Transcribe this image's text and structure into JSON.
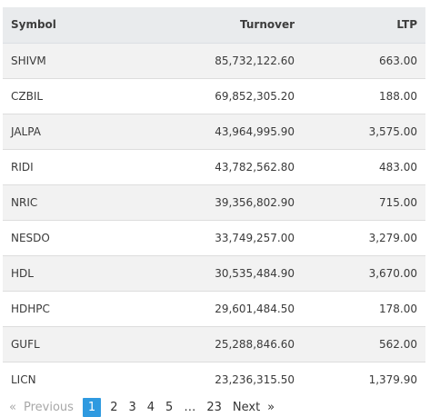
{
  "table": {
    "headers": {
      "symbol": "Symbol",
      "turnover": "Turnover",
      "ltp": "LTP"
    },
    "rows": [
      {
        "symbol": "SHIVM",
        "turnover": "85,732,122.60",
        "ltp": "663.00"
      },
      {
        "symbol": "CZBIL",
        "turnover": "69,852,305.20",
        "ltp": "188.00"
      },
      {
        "symbol": "JALPA",
        "turnover": "43,964,995.90",
        "ltp": "3,575.00"
      },
      {
        "symbol": "RIDI",
        "turnover": "43,782,562.80",
        "ltp": "483.00"
      },
      {
        "symbol": "NRIC",
        "turnover": "39,356,802.90",
        "ltp": "715.00"
      },
      {
        "symbol": "NESDO",
        "turnover": "33,749,257.00",
        "ltp": "3,279.00"
      },
      {
        "symbol": "HDL",
        "turnover": "30,535,484.90",
        "ltp": "3,670.00"
      },
      {
        "symbol": "HDHPC",
        "turnover": "29,601,484.50",
        "ltp": "178.00"
      },
      {
        "symbol": "GUFL",
        "turnover": "25,288,846.60",
        "ltp": "562.00"
      },
      {
        "symbol": "LICN",
        "turnover": "23,236,315.50",
        "ltp": "1,379.90"
      }
    ]
  },
  "pagination": {
    "prev_icon": "«",
    "prev_label": "Previous",
    "pages": [
      "1",
      "2",
      "3",
      "4",
      "5"
    ],
    "ellipsis": "…",
    "last_page": "23",
    "next_label": "Next",
    "next_icon": "»",
    "active_page": "1",
    "active_color": "#2f9ae0"
  }
}
